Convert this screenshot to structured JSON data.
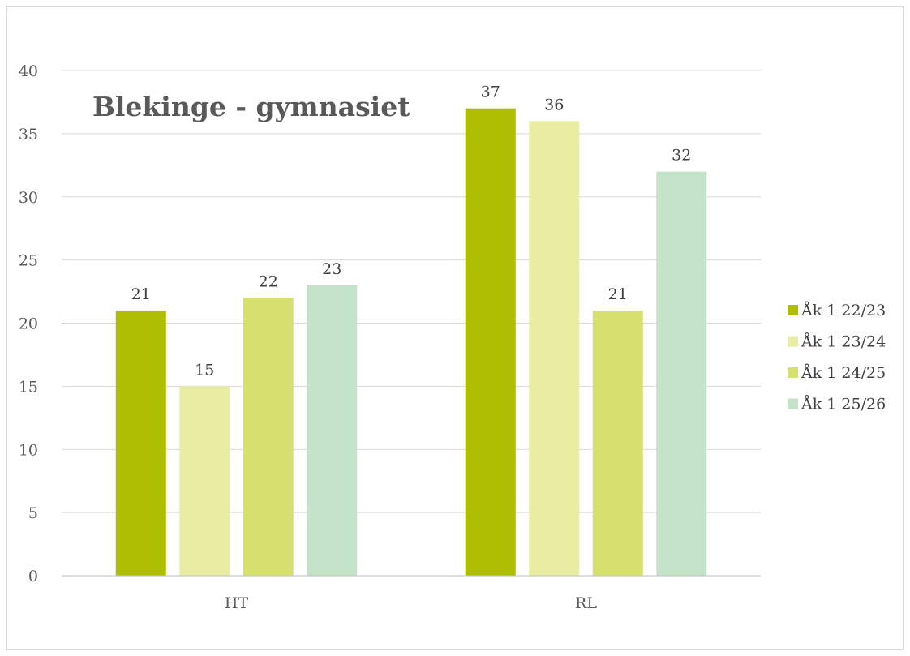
{
  "chart_data": {
    "type": "bar",
    "title": "Blekinge - gymnasiet",
    "xlabel": "",
    "ylabel": "",
    "categories": [
      "HT",
      "RL"
    ],
    "series": [
      {
        "name": "Åk 1 22/23",
        "values": [
          21,
          37
        ],
        "color": "#adbf00"
      },
      {
        "name": "Åk 1 23/24",
        "values": [
          15,
          36
        ],
        "color": "#e9eda3"
      },
      {
        "name": "Åk 1 24/25",
        "values": [
          22,
          21
        ],
        "color": "#d6e06d"
      },
      {
        "name": "Åk 1 25/26",
        "values": [
          23,
          32
        ],
        "color": "#c4e3c8"
      }
    ],
    "ylim": [
      0,
      40
    ],
    "yticks": [
      0,
      5,
      10,
      15,
      20,
      25,
      30,
      35,
      40
    ],
    "grid": true,
    "legend_position": "right",
    "data_labels": true
  }
}
